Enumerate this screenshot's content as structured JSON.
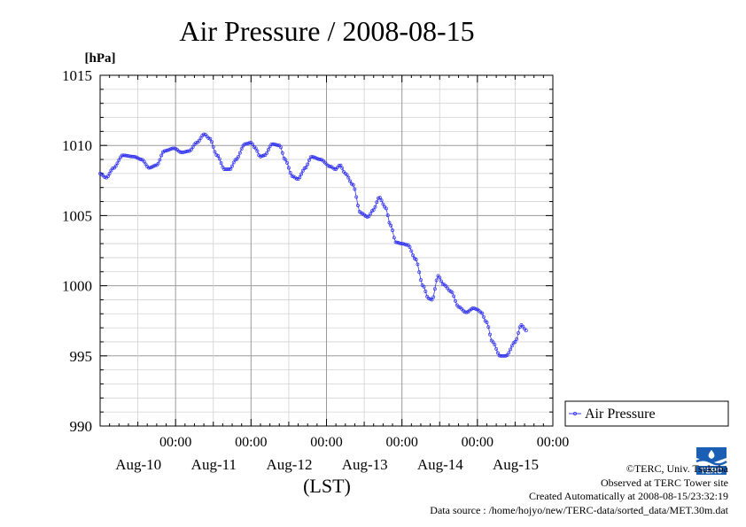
{
  "chart_data": {
    "type": "line",
    "title": "Air Pressure / 2008-08-15",
    "ylabel": "[hPa]",
    "xlabel": "(LST)",
    "ylim": [
      990,
      1015
    ],
    "yticks": [
      990,
      995,
      1000,
      1005,
      1010,
      1015
    ],
    "xlim_days_from_aug9": [
      0.0,
      6.0
    ],
    "xticks": [
      {
        "time": "00:00",
        "date": "Aug-10"
      },
      {
        "time": "00:00",
        "date": "Aug-11"
      },
      {
        "time": "00:00",
        "date": "Aug-12"
      },
      {
        "time": "00:00",
        "date": "Aug-13"
      },
      {
        "time": "00:00",
        "date": "Aug-14"
      },
      {
        "time": "00:00",
        "date": "Aug-15"
      }
    ],
    "grid": true,
    "legend_position": "right",
    "series": [
      {
        "name": "Air Pressure",
        "color": "#3333ee",
        "keypoints": [
          [
            0.0,
            1008.0
          ],
          [
            0.08,
            1007.7
          ],
          [
            0.18,
            1008.4
          ],
          [
            0.3,
            1009.3
          ],
          [
            0.45,
            1009.2
          ],
          [
            0.55,
            1009.0
          ],
          [
            0.65,
            1008.4
          ],
          [
            0.75,
            1008.6
          ],
          [
            0.85,
            1009.6
          ],
          [
            0.98,
            1009.8
          ],
          [
            1.08,
            1009.5
          ],
          [
            1.18,
            1009.6
          ],
          [
            1.28,
            1010.2
          ],
          [
            1.38,
            1010.8
          ],
          [
            1.45,
            1010.5
          ],
          [
            1.55,
            1009.3
          ],
          [
            1.65,
            1008.3
          ],
          [
            1.72,
            1008.3
          ],
          [
            1.8,
            1009.0
          ],
          [
            1.92,
            1010.1
          ],
          [
            2.0,
            1010.2
          ],
          [
            2.06,
            1009.8
          ],
          [
            2.12,
            1009.2
          ],
          [
            2.18,
            1009.3
          ],
          [
            2.28,
            1010.1
          ],
          [
            2.38,
            1010.0
          ],
          [
            2.45,
            1009.0
          ],
          [
            2.55,
            1007.8
          ],
          [
            2.62,
            1007.6
          ],
          [
            2.72,
            1008.4
          ],
          [
            2.8,
            1009.2
          ],
          [
            2.92,
            1009.0
          ],
          [
            3.05,
            1008.5
          ],
          [
            3.12,
            1008.3
          ],
          [
            3.18,
            1008.6
          ],
          [
            3.25,
            1008.0
          ],
          [
            3.35,
            1007.2
          ],
          [
            3.45,
            1005.2
          ],
          [
            3.55,
            1004.9
          ],
          [
            3.62,
            1005.4
          ],
          [
            3.7,
            1006.3
          ],
          [
            3.78,
            1005.6
          ],
          [
            3.85,
            1004.3
          ],
          [
            3.92,
            1003.1
          ],
          [
            4.0,
            1003.0
          ],
          [
            4.08,
            1002.9
          ],
          [
            4.18,
            1001.9
          ],
          [
            4.28,
            1000.0
          ],
          [
            4.35,
            999.1
          ],
          [
            4.4,
            999.0
          ],
          [
            4.48,
            1000.7
          ],
          [
            4.55,
            1000.1
          ],
          [
            4.65,
            999.6
          ],
          [
            4.75,
            998.5
          ],
          [
            4.85,
            998.1
          ],
          [
            4.95,
            998.4
          ],
          [
            5.0,
            998.3
          ],
          [
            5.05,
            998.1
          ],
          [
            5.12,
            997.4
          ],
          [
            5.2,
            996.0
          ],
          [
            5.3,
            995.0
          ],
          [
            5.38,
            995.0
          ],
          [
            5.5,
            996.0
          ],
          [
            5.58,
            997.2
          ],
          [
            5.65,
            996.8
          ]
        ]
      }
    ]
  },
  "credits": {
    "line1": "©TERC, Univ. Tsukuba",
    "line2": "Observed at TERC Tower site",
    "line3": "Created Automatically at 2008-08-15/23:32:19",
    "line4": "Data source : /home/hojyo/new/TERC-data/sorted_data/MET.30m.dat"
  },
  "logo": {
    "text": "TERC",
    "color": "#1a5fb4"
  }
}
